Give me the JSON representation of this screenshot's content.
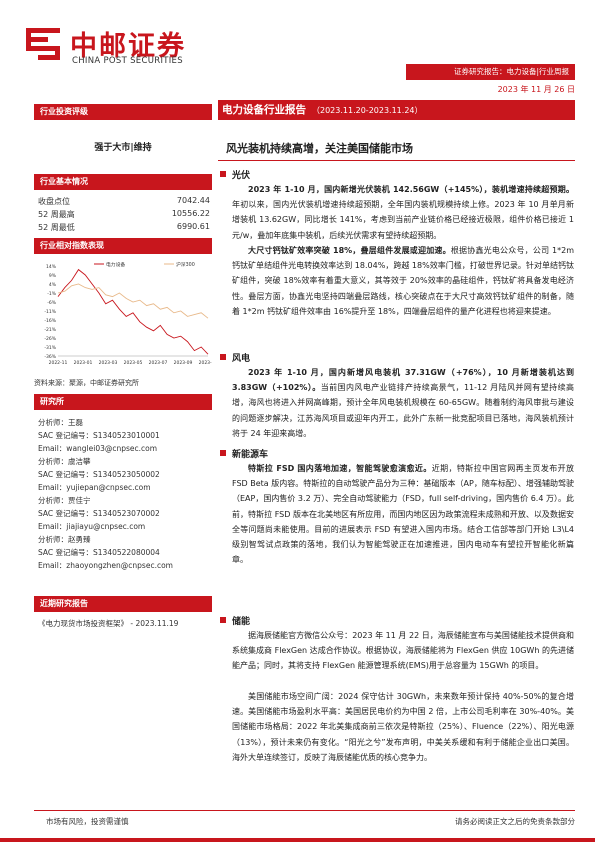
{
  "header": {
    "brand_cn": "中邮证券",
    "brand_en": "CHINA POST SECURITIES",
    "report_type": "证券研究报告：电力设备|行业周报",
    "date": "2023 年 11 月 26 日"
  },
  "left": {
    "rating_title": "行业投资评级",
    "rating": "强于大市|维持",
    "basic_title": "行业基本情况",
    "basic": [
      {
        "label": "收盘点位",
        "value": "7042.44"
      },
      {
        "label": "52 周最高",
        "value": "10556.22"
      },
      {
        "label": "52 周最低",
        "value": "6990.61"
      }
    ],
    "perf_title": "行业相对指数表现",
    "source": "资料来源：聚源，中邮证券研究所",
    "analyst_title": "研究所",
    "analysts": [
      "分析师：王磊",
      "SAC 登记编号：S1340523010001",
      "Email：wanglei03@cnpsec.com",
      "分析师：虞洁攀",
      "SAC 登记编号：S1340523050002",
      "Email：yujiepan@cnpsec.com",
      "分析师：贾佳宁",
      "SAC 登记编号：S1340523070002",
      "Email：jiajiayu@cnpsec.com",
      "分析师：赵勇臻",
      "SAC 登记编号：S1340522080004",
      "Email：zhaoyongzhen@cnpsec.com"
    ],
    "recent_title": "近期研究报告",
    "recent": "《电力现货市场投资框架》 - 2023.11.19"
  },
  "chart_data": {
    "type": "line",
    "legend": [
      "电力设备",
      "沪深300"
    ],
    "x_ticks": [
      "2022-11",
      "2023-01",
      "2023-03",
      "2023-05",
      "2023-07",
      "2023-09",
      "2023-11"
    ],
    "y_ticks": [
      "14%",
      "9%",
      "4%",
      "-1%",
      "-6%",
      "-11%",
      "-16%",
      "-21%",
      "-26%",
      "-31%",
      "-36%"
    ],
    "ylim": [
      -36,
      14
    ],
    "series": [
      {
        "name": "电力设备",
        "color": "#c8161d",
        "values": [
          -3,
          2,
          6,
          12,
          9,
          4,
          -1,
          -7,
          -5,
          -10,
          -14,
          -12,
          -17,
          -20,
          -22,
          -19,
          -24,
          -26,
          -25,
          -28,
          -33,
          -31,
          -35
        ]
      },
      {
        "name": "沪深300",
        "color": "#e8b98a",
        "values": [
          -1,
          0,
          3,
          4,
          2,
          1,
          2,
          -2,
          -3,
          -1,
          -4,
          -6,
          -5,
          -8,
          -7,
          -10,
          -9,
          -12,
          -11,
          -14,
          -13,
          -12,
          -15
        ]
      }
    ]
  },
  "main": {
    "title": "电力设备行业报告",
    "date_range": "（2023.11.20-2023.11.24）",
    "headline": "风光装机持续高增，关注美国储能市场",
    "sections": [
      {
        "title": "光伏",
        "paras": [
          {
            "bold": "2023 年 1-10 月，国内新增光伏装机 142.56GW（+145%），装机增速持续超预期。",
            "text": "年初以来，国内光伏装机增速持续超预期，全年国内装机规模持续上修。2023 年 10 月单月新增装机 13.62GW，同比增长 141%，考虑到当前产业链价格已经接近极限，组件价格已接近 1 元/w，叠加年底集中装机，后续光伏需求有望持续超预期。"
          },
          {
            "bold": "大尺寸钙钛矿效率突破 18%，叠层组件发展或迎加速。",
            "text": "根据协鑫光电公众号，公司 1*2m 钙钛矿单结组件光电转换效率达到 18.04%，跨越 18%效率门槛，打破世界记录。针对单结钙钛矿组件，突破 18%效率有着重大意义，其等效于 20%效率的晶硅组件，钙钛矿将具备发电经济性。叠层方面，协鑫光电坚持四端叠层路线，核心突破点在于大尺寸高效钙钛矿组件的制备，随着 1*2m 钙钛矿组件效率由 16%提升至 18%，四端叠层组件的量产化进程也将迎来提速。"
          }
        ]
      },
      {
        "title": "风电",
        "paras": [
          {
            "bold": "2023 年 1-10 月，国内新增风电装机 37.31GW（+76%），10 月新增装机达到 3.83GW（+102%）。",
            "text": "当前国内风电产业链排产持续高景气，11-12 月陆风并网有望持续高增，海风也将进入并网高峰期，预计全年风电装机规模在 60-65GW。随着制约海风审批与建设的问题逐步解决，江苏海风项目或迎年内开工，此外广东新一批竞配项目已落地，海风装机预计将于 24 年迎来高增。"
          }
        ]
      },
      {
        "title": "新能源车",
        "paras": [
          {
            "bold": "特斯拉 FSD 国内落地加速，智能驾驶愈演愈近。",
            "text": "近期，特斯拉中国官网再主页发布开放 FSD Beta 版内容。特斯拉的自动驾驶产品分为三种：基础版本（AP，随车标配）、增强辅助驾驶（EAP，国内售价 3.2 万）、完全自动驾驶能力（FSD，full self-driving，国内售价 6.4 万）。此前，特斯拉 FSD 版本在北美地区有所应用，而国内地区因为政策流程未成熟和开放、以及数据安全等问题尚未能使用。目前的进展表示 FSD 有望进入国内市场。结合工信部等部门开始 L3\\L4 级别智驾试点政策的落地，我们认为智能驾驶正在加速推进，国内电动车有望拉开智能化新篇章。"
          }
        ]
      },
      {
        "title": "储能",
        "paras": [
          {
            "bold": "",
            "text": "据海辰储能官方微信公众号：2023 年 11 月 22 日，海辰储能宣布与美国储能技术提供商和系统集成商 FlexGen 达成合作协议。根据协议，海辰储能将为 FlexGen 供应 10GWh 的先进储能产品；同时，其将支持 FlexGen 能源管理系统(EMS)用于总容量为 15GWh 的项目。"
          },
          {
            "bold": "",
            "text": "美国储能市场空间广阔：2024 保守估计 30GWh，未来数年预计保持 40%-50%的复合增速。美国储能市场盈利水平高：美国居民电价约为中国 2 倍，上市公司毛利率在 30%-40%。美国储能市场格局：2022 年北美集成商前三依次是特斯拉（25%）、Fluence（22%）、阳光电源（13%），预计未来仍有变化。“阳光之兮”发布声明，中美关系缓和有利于储能企业出口美国。海外大单连续签订，反映了海辰储能优质的核心竞争力。"
          }
        ]
      }
    ]
  },
  "footer": {
    "left": "市场有风险，投资需谨慎",
    "right": "请务必阅读正文之后的免责条款部分"
  }
}
